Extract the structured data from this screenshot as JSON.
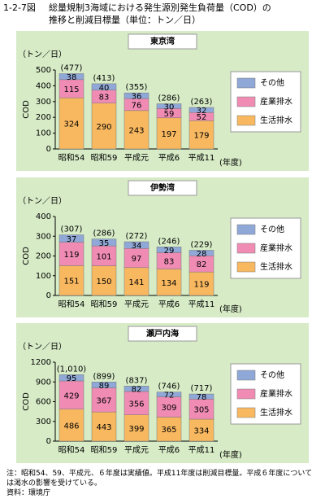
{
  "header": {
    "figure_number": "1-2-7図",
    "title_lines": [
      "総量規制3海域における発生源別発生負荷量（COD）の",
      "推移と削減目標量（単位：トン／日）"
    ]
  },
  "chart_data": [
    {
      "type": "bar",
      "stacked": true,
      "title": "東京湾",
      "ylabel": "COD",
      "yunit_label": "（トン／日）",
      "xlabel": "(年度)",
      "categories": [
        "昭和54",
        "昭和59",
        "平成元",
        "平成6",
        "平成11"
      ],
      "series": [
        {
          "name": "生活排水",
          "color": "#f8b860",
          "values": [
            324,
            290,
            243,
            197,
            179
          ]
        },
        {
          "name": "産業排水",
          "color": "#f08cb4",
          "values": [
            115,
            83,
            76,
            59,
            52
          ]
        },
        {
          "name": "その他",
          "color": "#8fa8d8",
          "values": [
            38,
            40,
            36,
            30,
            32
          ]
        }
      ],
      "totals": {
        "values": [
          477,
          413,
          355,
          286,
          263
        ],
        "value_labels": [
          "(477)",
          "(413)",
          "(355)",
          "(286)",
          "(263)"
        ]
      },
      "ylim": [
        0,
        500
      ],
      "yticks": [
        0,
        100,
        200,
        300,
        400,
        500
      ],
      "legend": "right"
    },
    {
      "type": "bar",
      "stacked": true,
      "title": "伊勢湾",
      "ylabel": "COD",
      "yunit_label": "（トン／日）",
      "xlabel": "(年度)",
      "categories": [
        "昭和54",
        "昭和59",
        "平成元",
        "平成6",
        "平成11"
      ],
      "series": [
        {
          "name": "生活排水",
          "color": "#f8b860",
          "values": [
            151,
            150,
            141,
            134,
            119
          ]
        },
        {
          "name": "産業排水",
          "color": "#f08cb4",
          "values": [
            119,
            101,
            97,
            83,
            82
          ]
        },
        {
          "name": "その他",
          "color": "#8fa8d8",
          "values": [
            37,
            35,
            34,
            29,
            28
          ]
        }
      ],
      "totals": {
        "values": [
          307,
          286,
          272,
          246,
          229
        ],
        "value_labels": [
          "(307)",
          "(286)",
          "(272)",
          "(246)",
          "(229)"
        ]
      },
      "ylim": [
        0,
        400
      ],
      "yticks": [
        0,
        100,
        200,
        300,
        400
      ],
      "legend": "right"
    },
    {
      "type": "bar",
      "stacked": true,
      "title": "瀬戸内海",
      "ylabel": "COD",
      "yunit_label": "（トン／日）",
      "xlabel": "(年度)",
      "categories": [
        "昭和54",
        "昭和59",
        "平成元",
        "平成6",
        "平成11"
      ],
      "series": [
        {
          "name": "生活排水",
          "color": "#f8b860",
          "values": [
            486,
            443,
            399,
            365,
            334
          ]
        },
        {
          "name": "産業排水",
          "color": "#f08cb4",
          "values": [
            429,
            367,
            356,
            309,
            305
          ]
        },
        {
          "name": "その他",
          "color": "#8fa8d8",
          "values": [
            95,
            89,
            82,
            72,
            78
          ]
        }
      ],
      "totals": {
        "values": [
          1010,
          899,
          837,
          746,
          717
        ],
        "value_labels": [
          "(1,010)",
          "(899)",
          "(837)",
          "(746)",
          "(717)"
        ]
      },
      "ylim": [
        0,
        1200
      ],
      "yticks": [
        0,
        300,
        600,
        900,
        1200
      ],
      "legend": "right"
    }
  ],
  "notes": {
    "note": "注：昭和54、59、平成元、６年度は実績値。平成11年度は削減目標量。平成６年度については渇水の影響を受けている。",
    "source": "資料：環境庁"
  }
}
